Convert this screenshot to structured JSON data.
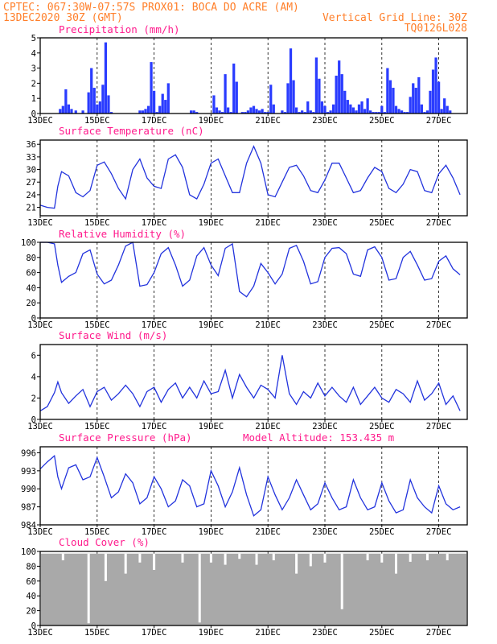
{
  "header": {
    "line1": "CPTEC:  067:30W-07:57S  PROX01: BOCA DO ACRE (AM)",
    "line2_left": "13DEC2020 30Z (GMT)",
    "line2_right": "Vertical Grid Line: 30Z",
    "line3_right": "TQ0126L028"
  },
  "colors": {
    "header": "#ff7f2a",
    "title": "#ff1a8c",
    "line": "#2233dd",
    "bars": "#2a3cff",
    "cloud": "#a9a9a9"
  },
  "x_axis_labels": [
    "13DEC",
    "15DEC",
    "17DEC",
    "19DEC",
    "21DEC",
    "23DEC",
    "25DEC",
    "27DEC"
  ],
  "panels": [
    {
      "id": "precip",
      "title": "Precipitation (mm/h)",
      "extra": "",
      "ticks": [
        "0",
        "1",
        "2",
        "3",
        "4",
        "5"
      ]
    },
    {
      "id": "temp",
      "title": "Surface Temperature (nC)",
      "extra": "",
      "ticks": [
        "21",
        "24",
        "27",
        "30",
        "33",
        "36"
      ]
    },
    {
      "id": "rh",
      "title": "Relative Humidity (%)",
      "extra": "",
      "ticks": [
        "0",
        "20",
        "40",
        "60",
        "80",
        "100"
      ]
    },
    {
      "id": "wind",
      "title": "Surface Wind (m/s)",
      "extra": "",
      "ticks": [
        "0",
        "2",
        "4",
        "6"
      ]
    },
    {
      "id": "pres",
      "title": "Surface Pressure (hPa)",
      "extra": "Model Altitude: 153.435 m",
      "ticks": [
        "984",
        "987",
        "990",
        "993",
        "996"
      ]
    },
    {
      "id": "cloud",
      "title": "Cloud Cover (%)",
      "extra": "",
      "ticks": [
        "0",
        "20",
        "40",
        "60",
        "80",
        "100"
      ]
    }
  ],
  "chart_data": [
    {
      "type": "bar",
      "title": "Precipitation (mm/h)",
      "x_unit": "days since 13DEC2020 00Z",
      "ylim": [
        0,
        5
      ],
      "x": [
        0.7,
        0.8,
        0.9,
        1.0,
        1.1,
        1.25,
        1.5,
        1.7,
        1.8,
        1.9,
        2.0,
        2.1,
        2.2,
        2.3,
        2.4,
        2.5,
        3.5,
        3.6,
        3.7,
        3.8,
        3.9,
        4.0,
        4.1,
        4.2,
        4.3,
        4.4,
        4.5,
        5.3,
        5.4,
        5.5,
        6.1,
        6.2,
        6.3,
        6.4,
        6.5,
        6.6,
        6.7,
        6.8,
        6.9,
        7.1,
        7.2,
        7.3,
        7.4,
        7.5,
        7.6,
        7.7,
        7.8,
        7.9,
        8.0,
        8.1,
        8.2,
        8.5,
        8.6,
        8.7,
        8.8,
        8.9,
        9.0,
        9.1,
        9.2,
        9.3,
        9.4,
        9.5,
        9.6,
        9.7,
        9.8,
        9.9,
        10.0,
        10.1,
        10.2,
        10.3,
        10.4,
        10.5,
        10.6,
        10.7,
        10.8,
        10.9,
        11.0,
        11.1,
        11.2,
        11.3,
        11.4,
        11.5,
        11.6,
        11.7,
        11.8,
        11.9,
        12.0,
        12.1,
        12.2,
        12.3,
        12.4,
        12.5,
        12.6,
        12.7,
        12.8,
        12.9,
        13.0,
        13.1,
        13.2,
        13.3,
        13.4,
        13.5,
        13.6,
        13.7,
        13.8,
        13.9,
        14.0,
        14.1,
        14.2,
        14.3,
        14.4
      ],
      "values": [
        0.3,
        0.5,
        1.6,
        0.6,
        0.3,
        0.2,
        0.2,
        1.4,
        3.0,
        1.7,
        0.6,
        0.8,
        1.9,
        4.7,
        1.2,
        0.1,
        0.2,
        0.2,
        0.3,
        0.5,
        3.4,
        1.5,
        0.1,
        0.5,
        1.3,
        0.9,
        2.0,
        0.2,
        0.2,
        0.1,
        1.2,
        0.4,
        0.2,
        0.1,
        2.6,
        0.4,
        0.1,
        3.3,
        2.1,
        0.1,
        0.1,
        0.2,
        0.4,
        0.5,
        0.3,
        0.2,
        0.3,
        0.1,
        0.1,
        1.9,
        0.6,
        0.2,
        0.1,
        2.0,
        4.3,
        2.2,
        0.4,
        0.1,
        0.2,
        0.1,
        0.8,
        0.2,
        0.1,
        3.7,
        2.3,
        0.8,
        0.5,
        0.1,
        0.2,
        0.6,
        2.5,
        3.5,
        2.6,
        1.5,
        0.9,
        0.6,
        0.4,
        0.2,
        0.6,
        0.8,
        0.3,
        1.0,
        0.2,
        0.1,
        0.1,
        0.1,
        0.5,
        0.1,
        3.0,
        2.2,
        1.7,
        0.5,
        0.3,
        0.2,
        0.1,
        0.1,
        1.1,
        2.0,
        1.7,
        2.4,
        0.6,
        0.1,
        0.2,
        1.5,
        2.9,
        3.7,
        2.1,
        0.3,
        1.0,
        0.5,
        0.2
      ]
    },
    {
      "type": "line",
      "title": "Surface Temperature (nC)",
      "x_unit": "days since 13DEC2020 00Z",
      "ylim": [
        19,
        37
      ],
      "x": [
        0,
        0.25,
        0.5,
        0.62,
        0.75,
        1.0,
        1.25,
        1.5,
        1.75,
        2.0,
        2.25,
        2.5,
        2.75,
        3.0,
        3.25,
        3.5,
        3.75,
        4.0,
        4.25,
        4.5,
        4.75,
        5.0,
        5.25,
        5.5,
        5.75,
        6.0,
        6.25,
        6.5,
        6.75,
        7.0,
        7.25,
        7.5,
        7.75,
        8.0,
        8.25,
        8.5,
        8.75,
        9.0,
        9.25,
        9.5,
        9.75,
        10.0,
        10.25,
        10.5,
        10.75,
        11.0,
        11.25,
        11.5,
        11.75,
        12.0,
        12.25,
        12.5,
        12.75,
        13.0,
        13.25,
        13.5,
        13.75,
        14.0,
        14.25,
        14.5,
        14.75
      ],
      "values": [
        21.5,
        21.0,
        20.8,
        26.0,
        29.5,
        28.5,
        24.5,
        23.5,
        25.0,
        31.0,
        31.8,
        29.0,
        25.5,
        23.0,
        30.0,
        32.5,
        28.0,
        26.0,
        25.5,
        32.5,
        33.5,
        30.5,
        24.0,
        23.0,
        26.5,
        31.5,
        32.5,
        28.5,
        24.5,
        24.5,
        31.5,
        35.5,
        31.5,
        24.0,
        23.5,
        27.0,
        30.5,
        31.0,
        28.5,
        25.0,
        24.5,
        27.5,
        31.5,
        31.5,
        28.0,
        24.5,
        25.0,
        28.0,
        30.5,
        29.5,
        25.5,
        24.5,
        26.5,
        30.0,
        29.5,
        25.0,
        24.5,
        29.0,
        31.0,
        28.0,
        24.0
      ]
    },
    {
      "type": "line",
      "title": "Relative Humidity (%)",
      "x_unit": "days since 13DEC2020 00Z",
      "ylim": [
        0,
        100
      ],
      "x": [
        0,
        0.25,
        0.5,
        0.62,
        0.75,
        1.0,
        1.25,
        1.5,
        1.75,
        2.0,
        2.25,
        2.5,
        2.75,
        3.0,
        3.25,
        3.5,
        3.75,
        4.0,
        4.25,
        4.5,
        4.75,
        5.0,
        5.25,
        5.5,
        5.75,
        6.0,
        6.25,
        6.5,
        6.75,
        7.0,
        7.25,
        7.5,
        7.75,
        8.0,
        8.25,
        8.5,
        8.75,
        9.0,
        9.25,
        9.5,
        9.75,
        10.0,
        10.25,
        10.5,
        10.75,
        11.0,
        11.25,
        11.5,
        11.75,
        12.0,
        12.25,
        12.5,
        12.75,
        13.0,
        13.25,
        13.5,
        13.75,
        14.0,
        14.25,
        14.5,
        14.75
      ],
      "values": [
        100,
        100,
        98,
        70,
        47,
        55,
        60,
        85,
        90,
        58,
        45,
        50,
        70,
        95,
        100,
        42,
        44,
        60,
        85,
        93,
        70,
        42,
        50,
        82,
        93,
        70,
        56,
        92,
        98,
        35,
        28,
        42,
        72,
        60,
        45,
        58,
        92,
        96,
        75,
        45,
        48,
        80,
        92,
        93,
        85,
        58,
        55,
        90,
        94,
        80,
        50,
        52,
        80,
        88,
        70,
        50,
        52,
        75,
        82,
        65,
        57
      ]
    },
    {
      "type": "line",
      "title": "Surface Wind (m/s)",
      "x_unit": "days since 13DEC2020 00Z",
      "ylim": [
        0,
        7
      ],
      "x": [
        0,
        0.25,
        0.5,
        0.62,
        0.75,
        1.0,
        1.25,
        1.5,
        1.75,
        2.0,
        2.25,
        2.5,
        2.75,
        3.0,
        3.25,
        3.5,
        3.75,
        4.0,
        4.25,
        4.5,
        4.75,
        5.0,
        5.25,
        5.5,
        5.75,
        6.0,
        6.25,
        6.5,
        6.75,
        7.0,
        7.25,
        7.5,
        7.75,
        8.0,
        8.25,
        8.5,
        8.75,
        9.0,
        9.25,
        9.5,
        9.75,
        10.0,
        10.25,
        10.5,
        10.75,
        11.0,
        11.25,
        11.5,
        11.75,
        12.0,
        12.25,
        12.5,
        12.75,
        13.0,
        13.25,
        13.5,
        13.75,
        14.0,
        14.25,
        14.5,
        14.75
      ],
      "values": [
        0.8,
        1.2,
        2.5,
        3.5,
        2.5,
        1.5,
        2.2,
        2.8,
        1.2,
        2.6,
        3.0,
        1.8,
        2.4,
        3.2,
        2.4,
        1.2,
        2.6,
        3.0,
        1.6,
        2.8,
        3.4,
        2.0,
        3.0,
        2.0,
        3.6,
        2.4,
        2.6,
        4.6,
        2.0,
        4.2,
        3.0,
        2.0,
        3.2,
        2.8,
        2.0,
        6.0,
        2.4,
        1.4,
        2.6,
        2.0,
        3.4,
        2.2,
        3.0,
        2.2,
        1.6,
        3.0,
        1.4,
        2.2,
        3.0,
        2.0,
        1.6,
        2.8,
        2.4,
        1.6,
        3.6,
        1.8,
        2.4,
        3.4,
        1.4,
        2.2,
        0.8
      ]
    },
    {
      "type": "line",
      "title": "Surface Pressure (hPa)",
      "x_unit": "days since 13DEC2020 00Z",
      "ylim": [
        984,
        997
      ],
      "x": [
        0,
        0.25,
        0.5,
        0.62,
        0.75,
        1.0,
        1.25,
        1.5,
        1.75,
        2.0,
        2.25,
        2.5,
        2.75,
        3.0,
        3.25,
        3.5,
        3.75,
        4.0,
        4.25,
        4.5,
        4.75,
        5.0,
        5.25,
        5.5,
        5.75,
        6.0,
        6.25,
        6.5,
        6.75,
        7.0,
        7.25,
        7.5,
        7.75,
        8.0,
        8.25,
        8.5,
        8.75,
        9.0,
        9.25,
        9.5,
        9.75,
        10.0,
        10.25,
        10.5,
        10.75,
        11.0,
        11.25,
        11.5,
        11.75,
        12.0,
        12.25,
        12.5,
        12.75,
        13.0,
        13.25,
        13.5,
        13.75,
        14.0,
        14.25,
        14.5,
        14.75
      ],
      "values": [
        993.3,
        994.5,
        995.5,
        992.0,
        990.0,
        993.5,
        994.0,
        991.5,
        992.0,
        995.2,
        992.0,
        988.5,
        989.5,
        992.5,
        991.0,
        987.5,
        988.5,
        992.0,
        990.0,
        987.0,
        988.0,
        991.5,
        990.5,
        987.0,
        987.5,
        993.0,
        990.5,
        987.0,
        989.5,
        993.5,
        989.0,
        985.5,
        986.5,
        992.0,
        989.0,
        986.5,
        988.5,
        991.5,
        989.0,
        986.5,
        987.5,
        991.0,
        988.5,
        986.5,
        987.0,
        991.5,
        988.5,
        986.5,
        987.0,
        991.0,
        988.0,
        986.0,
        986.5,
        991.5,
        988.5,
        987.0,
        986.0,
        990.5,
        987.5,
        986.5,
        987.0
      ]
    },
    {
      "type": "bar",
      "title": "Cloud Cover (%)",
      "x_unit": "days since 13DEC2020 00Z",
      "ylim": [
        0,
        100
      ],
      "note": "approximately 98-100% throughout except listed dips",
      "x": [
        0.8,
        1.7,
        2.3,
        3.0,
        3.5,
        4.0,
        5.0,
        5.6,
        6.0,
        6.5,
        7.0,
        7.6,
        8.2,
        9.0,
        9.5,
        10.0,
        10.6,
        11.5,
        12.0,
        12.5,
        13.0,
        13.6,
        14.3
      ],
      "values": [
        88,
        3,
        60,
        70,
        85,
        75,
        85,
        4,
        85,
        82,
        90,
        82,
        88,
        70,
        80,
        85,
        22,
        88,
        85,
        70,
        86,
        88,
        88
      ]
    }
  ]
}
